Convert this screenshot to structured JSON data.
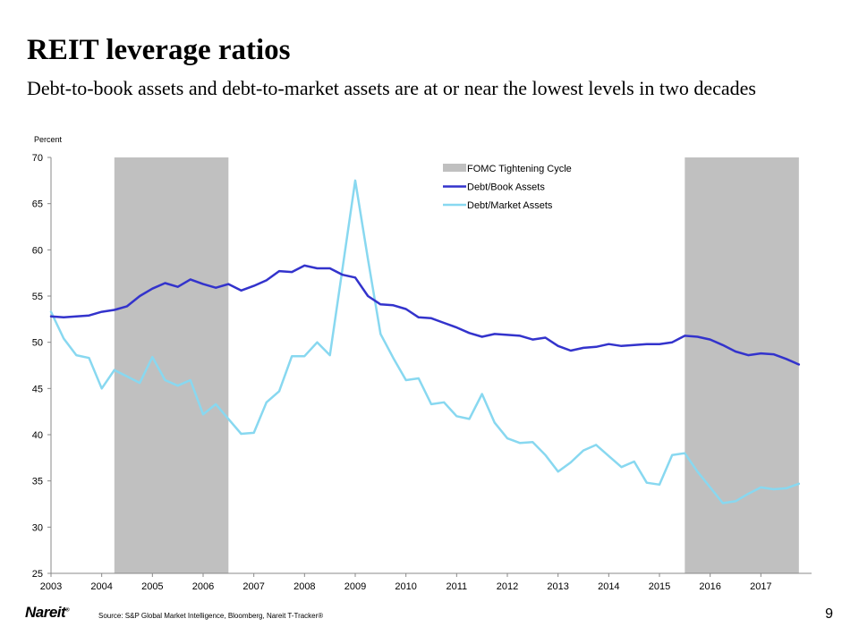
{
  "title": "REIT leverage ratios",
  "subtitle": "Debt-to-book assets and debt-to-market assets are at or near the lowest levels in two decades",
  "footer": {
    "logo": "Nareit",
    "logo_mark": "®",
    "source": "Source: S&P Global Market Intelligence, Bloomberg, Nareit T-Tracker®",
    "page_number": "9"
  },
  "chart_data": {
    "type": "line",
    "title": "",
    "ylabel": "Percent",
    "xlabel": "",
    "ylim": [
      25,
      70
    ],
    "xlim": [
      2003,
      2018
    ],
    "y_ticks": [
      25,
      30,
      35,
      40,
      45,
      50,
      55,
      60,
      65,
      70
    ],
    "x_ticks": [
      2003,
      2004,
      2005,
      2006,
      2007,
      2008,
      2009,
      2010,
      2011,
      2012,
      2013,
      2014,
      2015,
      2016,
      2017
    ],
    "legend_position": "top-center",
    "shaded_periods": [
      {
        "name": "FOMC Tightening Cycle",
        "start": 2004.25,
        "end": 2006.5,
        "color": "#c0c0c0"
      },
      {
        "name": "FOMC Tightening Cycle",
        "start": 2015.5,
        "end": 2017.75,
        "color": "#c0c0c0"
      }
    ],
    "series": [
      {
        "name": "Debt/Book Assets",
        "color": "#3333cc",
        "x": [
          2003.0,
          2003.25,
          2003.5,
          2003.75,
          2004.0,
          2004.25,
          2004.5,
          2004.75,
          2005.0,
          2005.25,
          2005.5,
          2005.75,
          2006.0,
          2006.25,
          2006.5,
          2006.75,
          2007.0,
          2007.25,
          2007.5,
          2007.75,
          2008.0,
          2008.25,
          2008.5,
          2008.75,
          2009.0,
          2009.25,
          2009.5,
          2009.75,
          2010.0,
          2010.25,
          2010.5,
          2010.75,
          2011.0,
          2011.25,
          2011.5,
          2011.75,
          2012.0,
          2012.25,
          2012.5,
          2012.75,
          2013.0,
          2013.25,
          2013.5,
          2013.75,
          2014.0,
          2014.25,
          2014.5,
          2014.75,
          2015.0,
          2015.25,
          2015.5,
          2015.75,
          2016.0,
          2016.25,
          2016.5,
          2016.75,
          2017.0,
          2017.25,
          2017.5,
          2017.75
        ],
        "values": [
          52.8,
          52.7,
          52.8,
          52.9,
          53.3,
          53.5,
          53.9,
          55.0,
          55.8,
          56.4,
          56.0,
          56.8,
          56.3,
          55.9,
          56.3,
          55.6,
          56.1,
          56.7,
          57.7,
          57.6,
          58.3,
          58.0,
          58.0,
          57.3,
          57.0,
          55.0,
          54.1,
          54.0,
          53.6,
          52.7,
          52.6,
          52.1,
          51.6,
          51.0,
          50.6,
          50.9,
          50.8,
          50.7,
          50.3,
          50.5,
          49.6,
          49.1,
          49.4,
          49.5,
          49.8,
          49.6,
          49.7,
          49.8,
          49.8,
          50.0,
          50.7,
          50.6,
          50.3,
          49.7,
          49.0,
          48.6,
          48.8,
          48.7,
          48.2,
          47.6
        ]
      },
      {
        "name": "Debt/Market Assets",
        "color": "#88d8f0",
        "x": [
          2003.0,
          2003.25,
          2003.5,
          2003.75,
          2004.0,
          2004.25,
          2004.5,
          2004.75,
          2005.0,
          2005.25,
          2005.5,
          2005.75,
          2006.0,
          2006.25,
          2006.5,
          2006.75,
          2007.0,
          2007.25,
          2007.5,
          2007.75,
          2008.0,
          2008.25,
          2008.5,
          2008.75,
          2009.0,
          2009.25,
          2009.5,
          2009.75,
          2010.0,
          2010.25,
          2010.5,
          2010.75,
          2011.0,
          2011.25,
          2011.5,
          2011.75,
          2012.0,
          2012.25,
          2012.5,
          2012.75,
          2013.0,
          2013.25,
          2013.5,
          2013.75,
          2014.0,
          2014.25,
          2014.5,
          2014.75,
          2015.0,
          2015.25,
          2015.5,
          2015.75,
          2016.0,
          2016.25,
          2016.5,
          2016.75,
          2017.0,
          2017.25,
          2017.5,
          2017.75
        ],
        "values": [
          53.3,
          50.4,
          48.6,
          48.3,
          45.0,
          47.0,
          46.3,
          45.6,
          48.4,
          45.9,
          45.3,
          45.9,
          42.2,
          43.3,
          41.7,
          40.1,
          40.2,
          43.5,
          44.7,
          48.5,
          48.5,
          50.0,
          48.6,
          58.0,
          67.5,
          59.0,
          50.9,
          48.3,
          45.9,
          46.1,
          43.3,
          43.5,
          42.0,
          41.7,
          44.4,
          41.3,
          39.6,
          39.1,
          39.2,
          37.8,
          36.0,
          37.0,
          38.3,
          38.9,
          37.7,
          36.5,
          37.1,
          34.8,
          34.6,
          37.8,
          38.0,
          36.0,
          34.3,
          32.6,
          32.8,
          33.6,
          34.3,
          34.1,
          34.2,
          34.7
        ]
      }
    ]
  }
}
